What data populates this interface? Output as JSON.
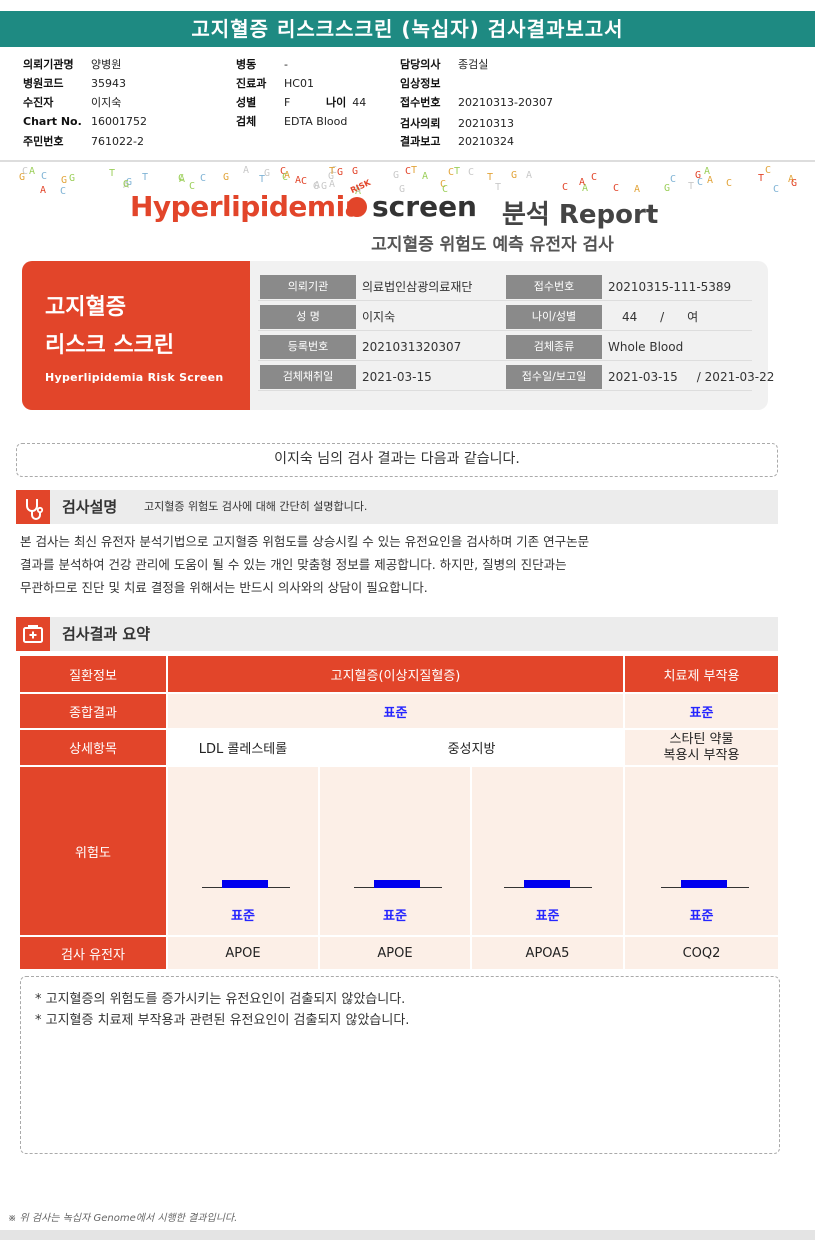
{
  "header": {
    "title": "고지혈증 리스크스크린 (녹십자) 검사결과보고서"
  },
  "meta": {
    "col1": [
      {
        "k": "의뢰기관명",
        "v": "양병원"
      },
      {
        "k": "병원코드",
        "v": "35943"
      },
      {
        "k": "수진자",
        "v": "이지숙"
      },
      {
        "k": "Chart No.",
        "v": "16001752"
      },
      {
        "k": "주민번호",
        "v": "761022-2"
      }
    ],
    "col2": [
      {
        "k": "병동",
        "v": "-"
      },
      {
        "k": "진료과",
        "v": "HC01"
      },
      {
        "k": "성별",
        "v": "F"
      },
      {
        "k": "검체",
        "v": "EDTA Blood"
      }
    ],
    "age": {
      "k": "나이",
      "v": "44"
    },
    "col3": [
      {
        "k": "담당의사",
        "v": "종검실"
      },
      {
        "k": "임상정보",
        "v": ""
      },
      {
        "k": "접수번호",
        "v": "20210313-20307"
      },
      {
        "k": "검사의뢰",
        "v": "20210313"
      },
      {
        "k": "결과보고",
        "v": "20210324"
      }
    ]
  },
  "logo": {
    "brand": "Hyperlipidemia",
    "risk": "RISK",
    "screen": "screen",
    "report": "분석 Report"
  },
  "subtitle": "고지혈증 위험도 예측 유전자 검사",
  "hero": {
    "title_line1": "고지혈증",
    "title_line2": "리스크 스크린",
    "title_en": "Hyperlipidemia Risk Screen",
    "rows": [
      {
        "l1": "의뢰기관",
        "v1": "의료법인삼광의료재단",
        "l2": "접수번호",
        "v2": "20210315-111-5389"
      },
      {
        "l1": "성 명",
        "v1": "이지숙",
        "l2": "나이/성별",
        "v2": "44      /      여"
      },
      {
        "l1": "등록번호",
        "v1": "2021031320307",
        "l2": "검체종류",
        "v2": "Whole Blood"
      },
      {
        "l1": "검체채취일",
        "v1": "2021-03-15",
        "l2": "접수일/보고일",
        "v2": "2021-03-15     / 2021-03-22"
      }
    ]
  },
  "greeting": "이지숙 님의 검사 결과는 다음과 같습니다.",
  "section1": {
    "title": "검사설명",
    "sub": "고지혈증 위험도 검사에 대해 간단히 설명합니다."
  },
  "description": [
    "본 검사는 최신 유전자 분석기법으로 고지혈증 위험도를 상승시킬 수 있는 유전요인을 검사하며 기존 연구논문",
    "결과를 분석하여 건강  관리에 도움이 될 수 있는 개인 맞춤형 정보를 제공합니다. 하지만, 질병의 진단과는",
    "무관하므로 진단 및 치료 결정을 위해서는 반드시 의사와의 상담이 필요합니다."
  ],
  "section2": {
    "title": "검사결과 요약"
  },
  "summary": {
    "row_disease": "질환정보",
    "disease_main": "고지혈증(이상지질혈증)",
    "disease_side": "치료제 부작용",
    "row_overall": "종합결과",
    "overall_main": "표준",
    "overall_side": "표준",
    "row_detail": "상세항목",
    "detail_ldl": "LDL 콜레스테롤",
    "detail_tg": "중성지방",
    "detail_statin": "스타틴 약물\n복용시 부작용",
    "row_risk": "위험도",
    "risk_labels": [
      "표준",
      "표준",
      "표준",
      "표준"
    ],
    "row_gene": "검사 유전자",
    "genes": [
      "APOE",
      "APOE",
      "APOA5",
      "COQ2"
    ]
  },
  "notes": [
    "* 고지혈증의 위험도를 증가시키는 유전요인이 검출되지 않았습니다.",
    "* 고지혈증 치료제 부작용과 관련된 유전요인이 검출되지 않았습니다."
  ],
  "footnote": "※ 위 검사는 녹십자 Genome에서 시행한 결과입니다.",
  "colors": {
    "teal": "#1e8a82",
    "red": "#e2452a",
    "pink": "#fcefe7",
    "blue": "#2525ff"
  }
}
